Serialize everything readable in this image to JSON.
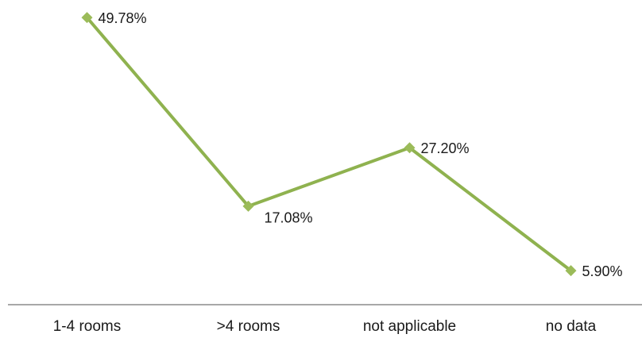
{
  "chart_data": {
    "type": "line",
    "categories": [
      "1-4 rooms",
      ">4 rooms",
      "not applicable",
      "no data"
    ],
    "values": [
      49.78,
      17.08,
      27.2,
      5.9
    ],
    "value_labels": [
      "49.78%",
      "17.08%",
      "27.20%",
      "5.90%"
    ],
    "color": "#8fb24f",
    "ylim": [
      0,
      52
    ]
  }
}
